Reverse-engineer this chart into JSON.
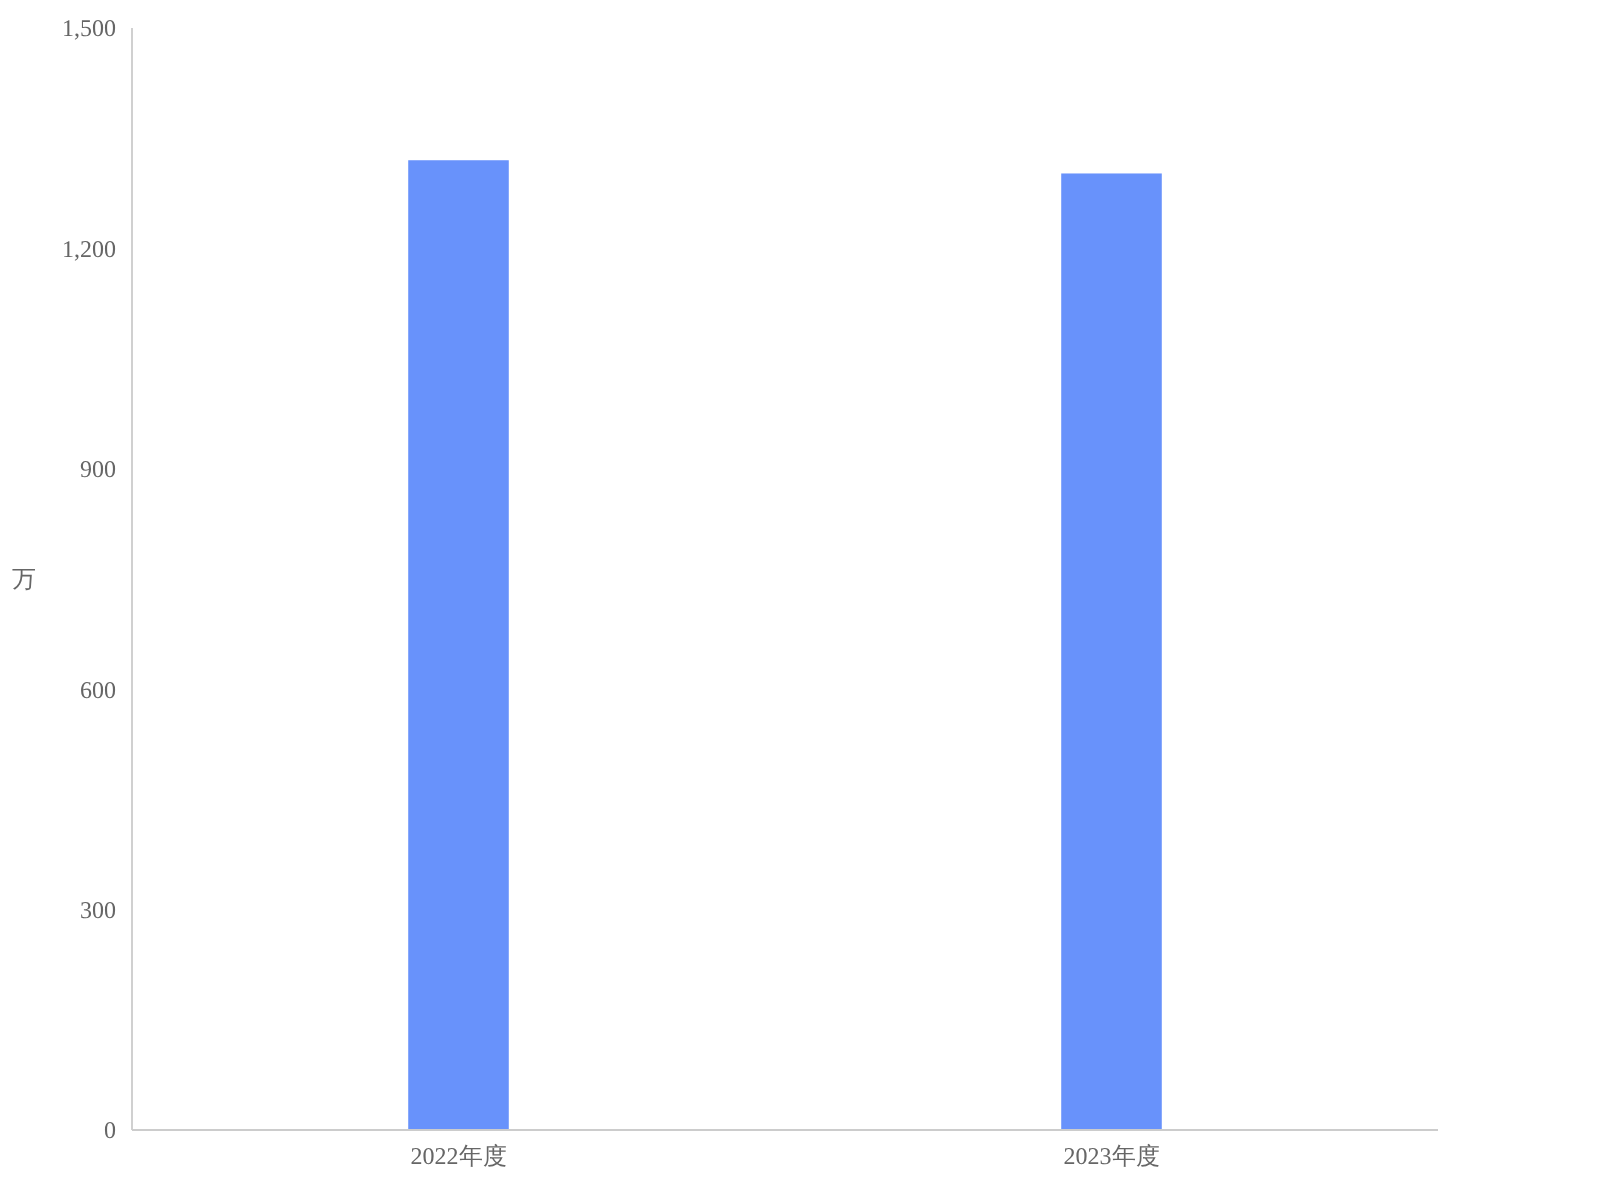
{
  "chart_data": {
    "type": "bar",
    "ylabel": "万",
    "categories": [
      "2022年度",
      "2023年度"
    ],
    "values": [
      1320,
      1302
    ],
    "color": "#6892fb",
    "ylim": [
      0,
      1500
    ],
    "yticks": [
      0,
      {
        "value": 300,
        "label": "300"
      },
      {
        "value": 600,
        "label": "600"
      },
      {
        "value": 900,
        "label": "900"
      },
      {
        "value": 1200,
        "label": "1,200"
      },
      {
        "value": 1500,
        "label": "1,500"
      }
    ],
    "grid": false
  }
}
